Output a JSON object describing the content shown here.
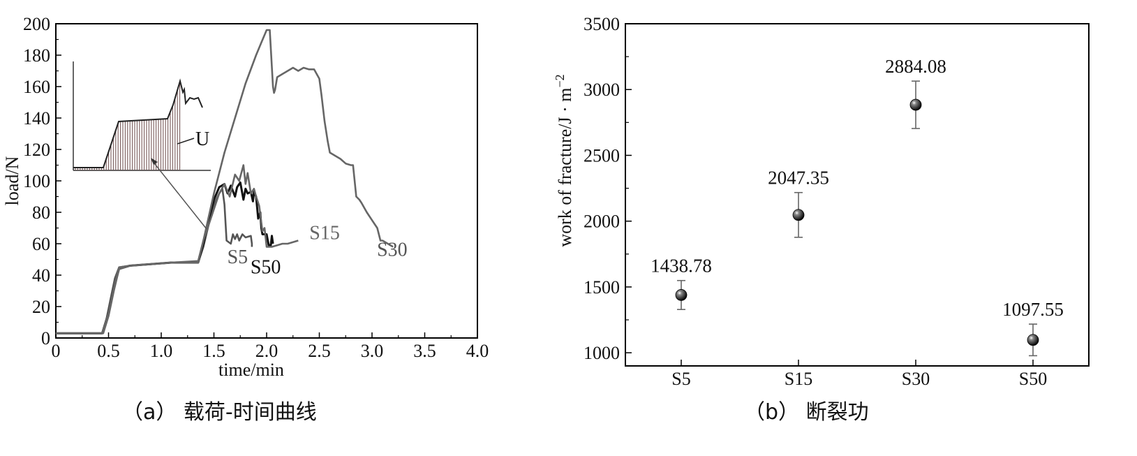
{
  "chart_data": [
    {
      "type": "line",
      "xlabel": "time/min",
      "ylabel": "load/N",
      "xlim": [
        0,
        4.0
      ],
      "ylim": [
        0,
        200
      ],
      "x_ticks": [
        "0",
        "0.5",
        "1.0",
        "1.5",
        "2.0",
        "2.5",
        "3.0",
        "3.5",
        "4.0"
      ],
      "y_ticks": [
        "0",
        "20",
        "40",
        "60",
        "80",
        "100",
        "120",
        "140",
        "160",
        "180",
        "200"
      ],
      "caption": "（a） 载荷-时间曲线",
      "inset_label": "U",
      "series": [
        {
          "name": "S5",
          "color": "#555555",
          "x": [
            0,
            0.44,
            0.48,
            0.52,
            0.56,
            0.6,
            0.7,
            0.9,
            1.1,
            1.35,
            1.4,
            1.45,
            1.5,
            1.55,
            1.58,
            1.6,
            1.62,
            1.66,
            1.68,
            1.7,
            1.72,
            1.74,
            1.77,
            1.8,
            1.85,
            1.86,
            1.86
          ],
          "y": [
            3,
            3,
            12,
            25,
            38,
            45,
            46,
            47,
            48,
            48,
            58,
            72,
            85,
            92,
            95,
            85,
            62,
            60,
            66,
            63,
            66,
            62,
            66,
            64,
            65,
            60,
            58
          ]
        },
        {
          "name": "S50",
          "color": "#111111",
          "x": [
            0,
            0.44,
            0.5,
            0.55,
            0.6,
            0.7,
            0.9,
            1.1,
            1.35,
            1.4,
            1.45,
            1.5,
            1.55,
            1.6,
            1.63,
            1.66,
            1.7,
            1.72,
            1.75,
            1.78,
            1.8,
            1.82,
            1.85,
            1.87,
            1.88,
            1.9,
            1.92,
            1.94,
            1.95,
            1.96,
            1.98,
            2.0,
            2.02,
            2.04,
            2.05,
            2.06
          ],
          "y": [
            3,
            3,
            16,
            32,
            44,
            46,
            47,
            48,
            48,
            60,
            75,
            88,
            96,
            98,
            92,
            97,
            90,
            96,
            99,
            88,
            95,
            92,
            93,
            87,
            93,
            90,
            76,
            80,
            70,
            66,
            66,
            66,
            59,
            59,
            65,
            60
          ]
        },
        {
          "name": "S15",
          "color": "#666666",
          "x": [
            0,
            0.45,
            0.5,
            0.55,
            0.6,
            0.7,
            0.9,
            1.1,
            1.35,
            1.4,
            1.5,
            1.55,
            1.6,
            1.65,
            1.7,
            1.74,
            1.78,
            1.8,
            1.82,
            1.85,
            1.88,
            1.9,
            1.93,
            1.96,
            1.98,
            2.0,
            2.02,
            2.05,
            2.1,
            2.15,
            2.2,
            2.25,
            2.3
          ],
          "y": [
            3,
            3,
            14,
            30,
            44,
            46,
            47,
            48,
            49,
            62,
            82,
            92,
            98,
            90,
            104,
            100,
            110,
            98,
            105,
            92,
            95,
            90,
            84,
            68,
            70,
            58,
            58,
            58,
            59,
            60,
            60,
            61,
            62
          ]
        },
        {
          "name": "S30",
          "color": "#666666",
          "x": [
            0,
            0.44,
            0.5,
            0.55,
            0.6,
            0.7,
            0.9,
            1.1,
            1.35,
            1.4,
            1.5,
            1.6,
            1.7,
            1.8,
            1.9,
            1.95,
            2.0,
            2.03,
            2.06,
            2.07,
            2.08,
            2.1,
            2.15,
            2.2,
            2.25,
            2.3,
            2.35,
            2.4,
            2.45,
            2.5,
            2.52,
            2.55,
            2.58,
            2.6,
            2.65,
            2.7,
            2.75,
            2.8,
            2.82,
            2.85,
            2.88,
            2.9,
            2.95,
            3.0,
            3.05,
            3.08,
            3.1,
            3.2
          ],
          "y": [
            3,
            3,
            16,
            32,
            45,
            46,
            47,
            48,
            48,
            62,
            92,
            118,
            140,
            162,
            180,
            188,
            196,
            196,
            160,
            156,
            158,
            166,
            168,
            170,
            172,
            170,
            172,
            171,
            171,
            165,
            155,
            138,
            125,
            118,
            116,
            114,
            111,
            110,
            110,
            90,
            88,
            86,
            80,
            75,
            70,
            62,
            62,
            58
          ]
        }
      ]
    },
    {
      "type": "scatter",
      "xlabel": "",
      "ylabel": "work of fracture/J · m",
      "ylabel_sup": "−2",
      "ylim": [
        900,
        3500
      ],
      "y_ticks": [
        "1000",
        "1500",
        "2000",
        "2500",
        "3000",
        "3500"
      ],
      "categories": [
        "S5",
        "S15",
        "S30",
        "S50"
      ],
      "values": [
        1438.78,
        2047.35,
        2884.08,
        1097.55
      ],
      "value_labels": [
        "1438.78",
        "2047.35",
        "2884.08",
        "1097.55"
      ],
      "errors": [
        110,
        170,
        180,
        120
      ],
      "caption": "（b） 断裂功"
    }
  ]
}
